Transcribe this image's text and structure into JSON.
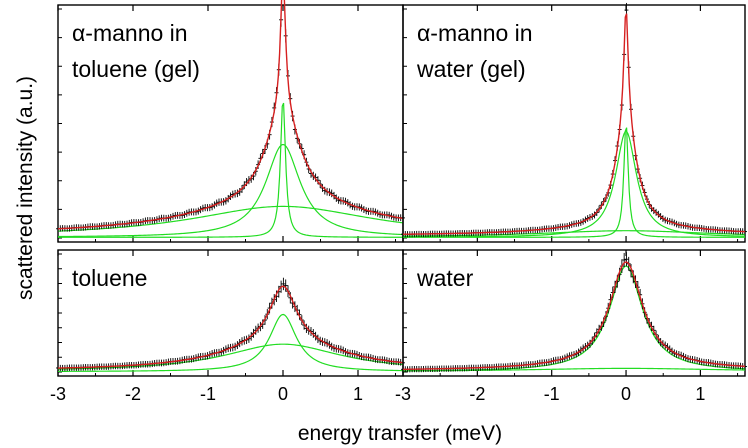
{
  "xlabel": "energy transfer (meV)",
  "ylabel": "scattered intensity (a.u.)",
  "x_ticks": [
    "-3",
    "-2",
    "-1",
    "0",
    "1"
  ],
  "colors": {
    "data": "#000000",
    "fit": "#d62020",
    "components": "#22dd22"
  },
  "chart_data": [
    {
      "type": "line",
      "position": "top-left",
      "label_line1": "α-manno in",
      "label_line2": "toluene (gel)",
      "xlim": [
        -3,
        1.6
      ],
      "y_scale": "arbitrary",
      "components": [
        {
          "kind": "delta-like",
          "amplitude": 0.63,
          "width": 0.04
        },
        {
          "kind": "lorentzian",
          "amplitude": 0.42,
          "width": 0.28
        },
        {
          "kind": "lorentzian",
          "amplitude": 0.14,
          "width": 1.5
        }
      ],
      "baseline": 0.01,
      "peak": 1.0
    },
    {
      "type": "line",
      "position": "top-right",
      "label_line1": "α-manno in",
      "label_line2": "water (gel)",
      "xlim": [
        -3,
        1.6
      ],
      "y_scale": "arbitrary",
      "components": [
        {
          "kind": "delta-like",
          "amplitude": 0.52,
          "width": 0.035
        },
        {
          "kind": "lorentzian",
          "amplitude": 0.48,
          "width": 0.17
        },
        {
          "kind": "lorentzian",
          "amplitude": 0.03,
          "width": 1.4
        }
      ],
      "baseline": 0.01,
      "peak": 1.0
    },
    {
      "type": "line",
      "position": "bottom-left",
      "label_line1": "toluene",
      "label_line2": "",
      "xlim": [
        -3,
        1.6
      ],
      "y_scale": "arbitrary",
      "components": [
        {
          "kind": "lorentzian",
          "amplitude": 0.52,
          "width": 0.22
        },
        {
          "kind": "lorentzian",
          "amplitude": 0.25,
          "width": 0.95
        }
      ],
      "baseline": 0.01,
      "peak": 1.0
    },
    {
      "type": "line",
      "position": "bottom-right",
      "label_line1": "water",
      "label_line2": "",
      "xlim": [
        -3,
        1.6
      ],
      "y_scale": "arbitrary",
      "components": [
        {
          "kind": "lorentzian",
          "amplitude": 0.96,
          "width": 0.27
        },
        {
          "kind": "lorentzian",
          "amplitude": 0.03,
          "width": 1.6
        }
      ],
      "baseline": 0.01,
      "peak": 1.0
    }
  ]
}
